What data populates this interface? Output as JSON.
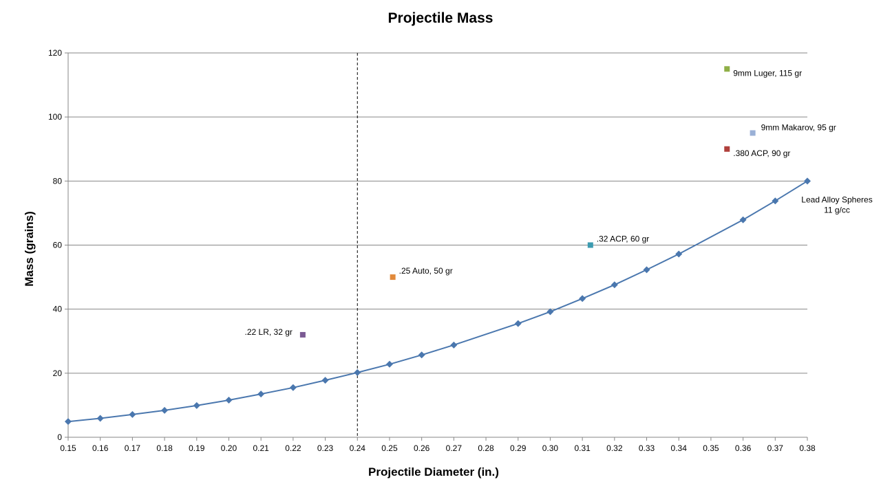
{
  "chart_data": {
    "type": "scatter",
    "title": "Projectile Mass",
    "xlabel": "Projectile Diameter (in.)",
    "ylabel": "Mass (grains)",
    "xlim": [
      0.15,
      0.38
    ],
    "ylim": [
      0,
      120
    ],
    "yticks": [
      0,
      20,
      40,
      60,
      80,
      100,
      120
    ],
    "ytick_labels": [
      "0",
      "20",
      "40",
      "60",
      "80",
      "100",
      "120"
    ],
    "xticks": [
      0.15,
      0.16,
      0.17,
      0.18,
      0.19,
      0.2,
      0.21,
      0.22,
      0.23,
      0.24,
      0.25,
      0.26,
      0.27,
      0.28,
      0.29,
      0.3,
      0.31,
      0.32,
      0.33,
      0.34,
      0.35,
      0.36,
      0.37,
      0.38
    ],
    "xtick_labels": [
      "0.15",
      "0.16",
      "0.17",
      "0.18",
      "0.19",
      "0.20",
      "0.21",
      "0.22",
      "0.23",
      "0.24",
      "0.25",
      "0.26",
      "0.27",
      "0.28",
      "0.29",
      "0.30",
      "0.31",
      "0.32",
      "0.33",
      "0.34",
      "0.35",
      "0.36",
      "0.37",
      "0.38"
    ],
    "grid": "horizontal",
    "reference_line": {
      "x": 0.24,
      "style": "dashed"
    },
    "curve": {
      "name_line1": "Lead Alloy Spheres",
      "name_line2": "11 g/cc",
      "color": "#4A77AE",
      "marker": "diamond",
      "x": [
        0.15,
        0.16,
        0.17,
        0.18,
        0.19,
        0.2,
        0.21,
        0.22,
        0.23,
        0.24,
        0.25,
        0.26,
        0.27,
        0.29,
        0.3,
        0.31,
        0.32,
        0.33,
        0.34,
        0.36,
        0.37,
        0.38
      ],
      "y": [
        4.9,
        5.9,
        7.1,
        8.4,
        9.9,
        11.6,
        13.5,
        15.5,
        17.8,
        20.2,
        22.8,
        25.7,
        28.8,
        35.5,
        39.2,
        43.3,
        47.6,
        52.3,
        57.2,
        67.9,
        73.8,
        80.0
      ]
    },
    "points": [
      {
        "label": ".22 LR, 32 gr",
        "x": 0.223,
        "y": 32,
        "color": "#7B5A93",
        "label_side": "left"
      },
      {
        "label": ".25 Auto, 50 gr",
        "x": 0.251,
        "y": 50,
        "color": "#E28A3B",
        "label_side": "right"
      },
      {
        "label": ".32 ACP, 60 gr",
        "x": 0.3125,
        "y": 60,
        "color": "#3C9BB0",
        "label_side": "right"
      },
      {
        "label": ".380 ACP, 90 gr",
        "x": 0.355,
        "y": 90,
        "color": "#B0403C",
        "label_side": "right-below"
      },
      {
        "label": "9mm Makarov, 95 gr",
        "x": 0.363,
        "y": 95,
        "color": "#9AB0D6",
        "label_side": "right-above"
      },
      {
        "label": "9mm Luger, 115 gr",
        "x": 0.355,
        "y": 115,
        "color": "#8FAF47",
        "label_side": "right-below"
      }
    ]
  }
}
